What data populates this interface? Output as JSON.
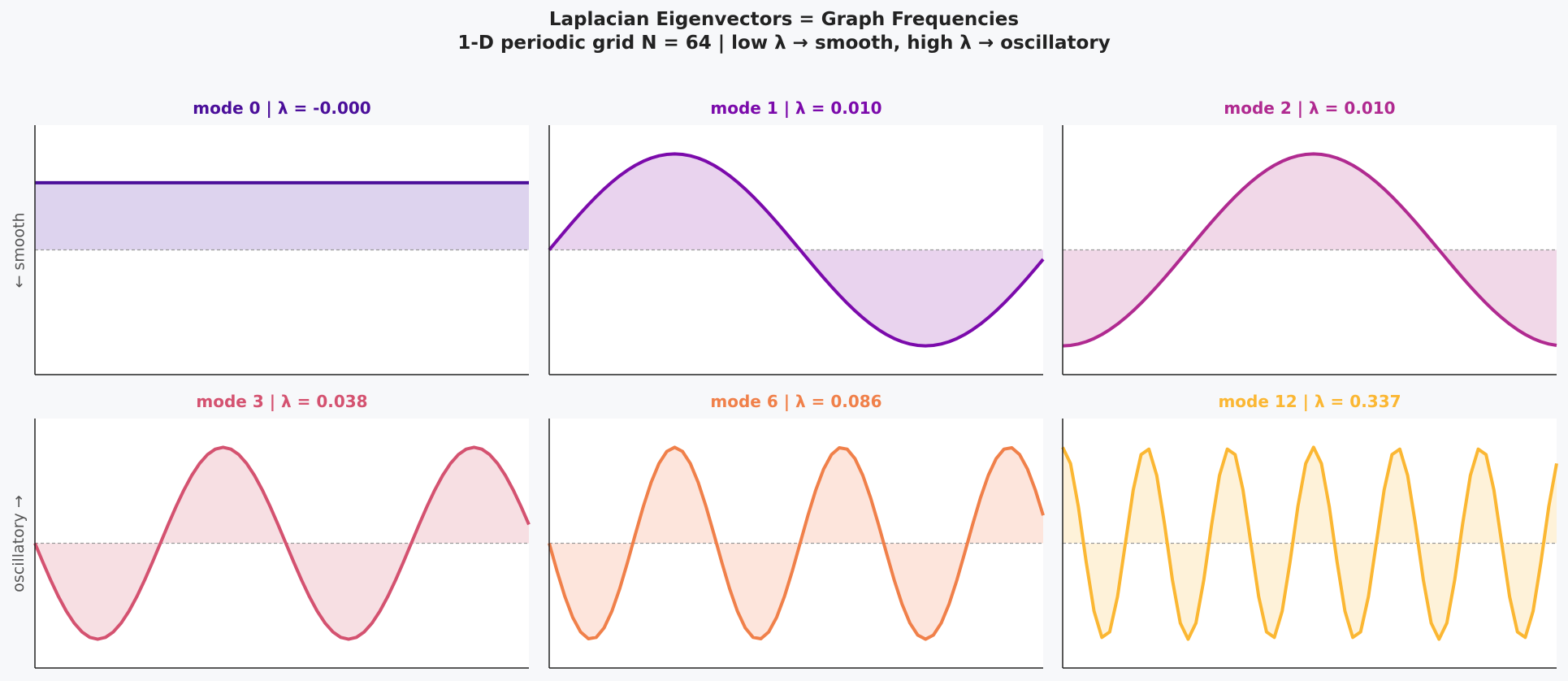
{
  "header": {
    "title": "Laplacian Eigenvectors = Graph Frequencies",
    "subtitle": "1-D periodic grid  N = 64  |  low λ → smooth,  high λ → oscillatory"
  },
  "row_labels": [
    "← smooth",
    "oscillatory →"
  ],
  "chart_data": [
    {
      "type": "line",
      "mode": 0,
      "title": "mode 0  |  λ = -0.000",
      "color": "#4b0f9a",
      "fill": "#ddd3ee",
      "shape": "constant",
      "k": 0,
      "phase": 0,
      "amplitude": 0.7,
      "ylim": [
        -1.3,
        1.3
      ],
      "N": 64,
      "grid": false
    },
    {
      "type": "line",
      "mode": 1,
      "title": "mode 1  |  λ = 0.010",
      "color": "#7b0aab",
      "fill": "#e9d3ee",
      "shape": "sin",
      "k": 1,
      "phase": 0,
      "amplitude": 1.0,
      "ylim": [
        -1.3,
        1.3
      ],
      "N": 64,
      "grid": false
    },
    {
      "type": "line",
      "mode": 2,
      "title": "mode 2  |  λ = 0.010",
      "color": "#b02a90",
      "fill": "#f1d8e8",
      "shape": "sin",
      "k": 1,
      "phase": -1.5708,
      "amplitude": 1.0,
      "ylim": [
        -1.3,
        1.3
      ],
      "N": 64,
      "grid": false
    },
    {
      "type": "line",
      "mode": 3,
      "title": "mode 3  |  λ = 0.038",
      "color": "#d45270",
      "fill": "#f7dfe3",
      "shape": "sin",
      "k": 2,
      "phase": 3.1416,
      "amplitude": 1.0,
      "ylim": [
        -1.3,
        1.3
      ],
      "N": 64,
      "grid": false
    },
    {
      "type": "line",
      "mode": 6,
      "title": "mode 6  |  λ = 0.086",
      "color": "#f0804a",
      "fill": "#fde5dc",
      "shape": "sin",
      "k": 3,
      "phase": 3.1416,
      "amplitude": 1.0,
      "ylim": [
        -1.3,
        1.3
      ],
      "N": 64,
      "grid": false
    },
    {
      "type": "line",
      "mode": 12,
      "title": "mode 12  |  λ = 0.337",
      "color": "#fbb733",
      "fill": "#fef2d9",
      "shape": "sin",
      "k": 6,
      "phase": 1.5708,
      "amplitude": 1.0,
      "ylim": [
        -1.3,
        1.3
      ],
      "N": 64,
      "grid": false
    }
  ]
}
